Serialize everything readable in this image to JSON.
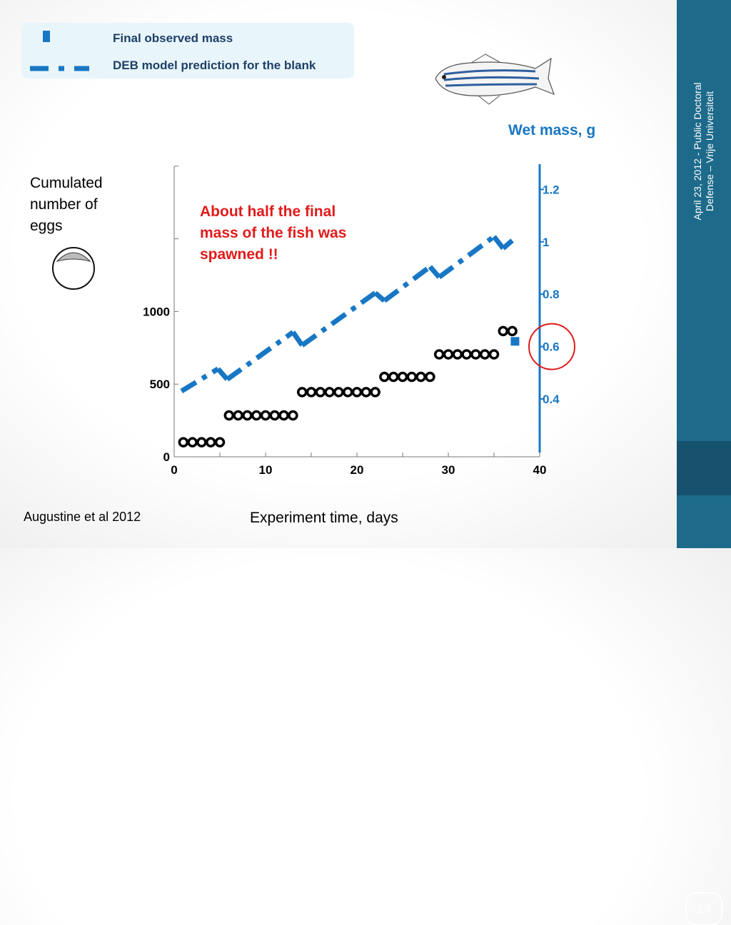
{
  "legend": {
    "final_mass": "Final observed mass",
    "deb_prediction": "DEB model prediction for the blank"
  },
  "sidebar": {
    "date_line1": "April 23, 2012 -  Public Doctoral",
    "date_line2": "Defense – Vrije Universiteit",
    "page_number": "14"
  },
  "chart_data": {
    "type": "scatter",
    "ylabel_left": "Cumulated number of eggs",
    "ylabel_right": "Wet mass, g",
    "xlabel": "Experiment time, days",
    "annotation": "About half the final mass of the fish was spawned !!",
    "citation": "Augustine et al 2012",
    "xlim": [
      0,
      40
    ],
    "ylim_left": [
      0,
      2000
    ],
    "ylim_right": [
      0.2,
      1.3
    ],
    "x_ticks": [
      "0",
      "10",
      "20",
      "30",
      "40"
    ],
    "y_left_ticks": [
      "0",
      "500",
      "1000"
    ],
    "y_right_ticks": [
      "0.4",
      "0.6",
      "0.8",
      "1",
      "1.2"
    ],
    "colors": {
      "eggs": "#000000",
      "deb": "#1877c4",
      "final_mass": "#1877c4",
      "highlight": "#e11b1b",
      "annotation": "#e11b1b",
      "right_axis": "#1877c4"
    },
    "series": [
      {
        "name": "Cumulated number of eggs",
        "axis": "left",
        "marker": "open-circle",
        "x": [
          1,
          2,
          3,
          4,
          5,
          6,
          7,
          8,
          9,
          10,
          11,
          12,
          13,
          14,
          15,
          16,
          17,
          18,
          19,
          20,
          21,
          22,
          23,
          24,
          25,
          26,
          27,
          28,
          29,
          30,
          31,
          32,
          33,
          34,
          35,
          36,
          37
        ],
        "y": [
          100,
          100,
          100,
          100,
          100,
          285,
          285,
          285,
          285,
          285,
          285,
          285,
          285,
          445,
          445,
          445,
          445,
          445,
          445,
          445,
          445,
          445,
          550,
          550,
          550,
          550,
          550,
          550,
          705,
          705,
          705,
          705,
          705,
          705,
          705,
          865,
          865
        ]
      },
      {
        "name": "DEB model prediction for the blank",
        "axis": "right",
        "style": "dash-dot",
        "segments": [
          {
            "x": [
              0.8,
              4.8
            ],
            "y": [
              0.43,
              0.515
            ]
          },
          {
            "x": [
              4.8,
              5.8
            ],
            "y": [
              0.515,
              0.475
            ]
          },
          {
            "x": [
              5.8,
              13
            ],
            "y": [
              0.475,
              0.655
            ]
          },
          {
            "x": [
              13,
              14
            ],
            "y": [
              0.655,
              0.605
            ]
          },
          {
            "x": [
              14,
              22
            ],
            "y": [
              0.605,
              0.805
            ]
          },
          {
            "x": [
              22,
              23
            ],
            "y": [
              0.805,
              0.775
            ]
          },
          {
            "x": [
              23,
              28
            ],
            "y": [
              0.775,
              0.905
            ]
          },
          {
            "x": [
              28,
              29
            ],
            "y": [
              0.905,
              0.865
            ]
          },
          {
            "x": [
              29,
              35
            ],
            "y": [
              0.865,
              1.02
            ]
          },
          {
            "x": [
              35,
              36
            ],
            "y": [
              1.02,
              0.975
            ]
          },
          {
            "x": [
              36,
              37
            ],
            "y": [
              0.975,
              1.005
            ]
          }
        ]
      },
      {
        "name": "Final observed mass",
        "axis": "right",
        "marker": "square",
        "x": [
          37.3
        ],
        "y": [
          0.62
        ]
      }
    ],
    "highlight_circle": {
      "x": 40,
      "y": 0.6
    }
  }
}
